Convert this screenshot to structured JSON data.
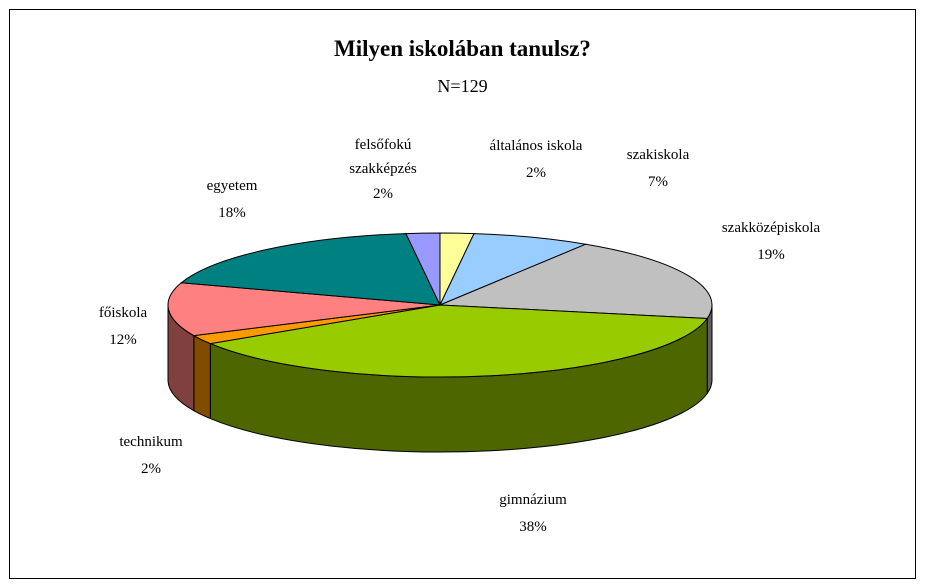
{
  "chart_data": {
    "type": "pie3d",
    "title": "Milyen iskolában tanulsz?",
    "subtitle": "N=129",
    "categories": [
      "általános iskola",
      "szakiskola",
      "szakközépiskola",
      "gimnázium",
      "technikum",
      "főiskola",
      "egyetem",
      "felsőfokú szakképzés"
    ],
    "values": [
      2,
      7,
      19,
      38,
      2,
      12,
      18,
      2
    ],
    "value_labels": [
      "2%",
      "7%",
      "19%",
      "38%",
      "2%",
      "12%",
      "18%",
      "2%"
    ],
    "colors": [
      "#ffff99",
      "#99ccff",
      "#c0c0c0",
      "#99cc00",
      "#ff9900",
      "#ff8080",
      "#008080",
      "#9999ff"
    ]
  }
}
